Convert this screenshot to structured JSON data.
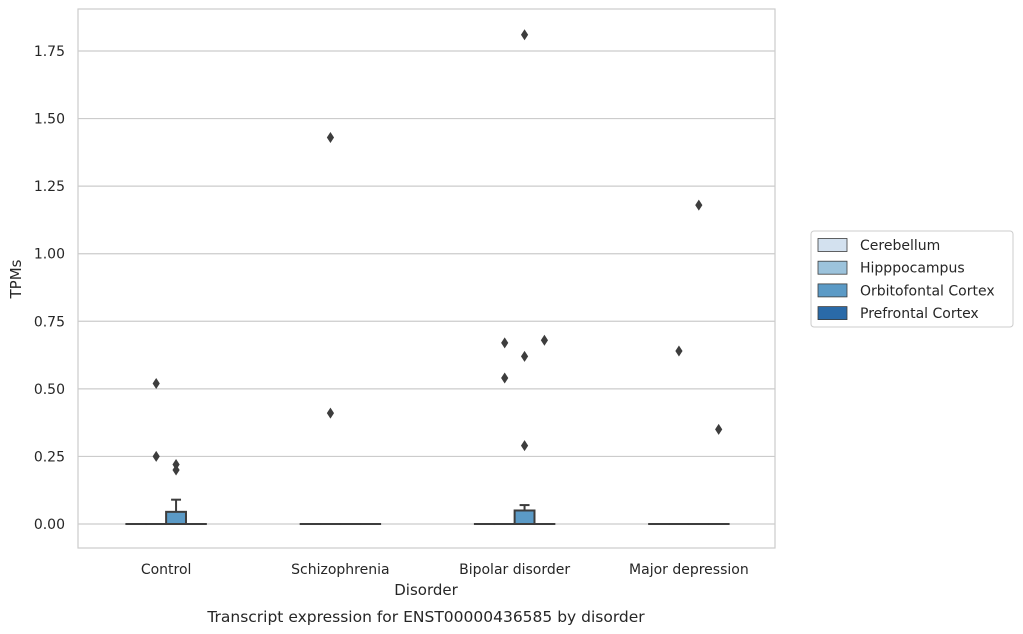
{
  "chart_data": {
    "type": "box",
    "title": "",
    "caption": "Transcript expression for ENST00000436585 by disorder",
    "xlabel": "Disorder",
    "ylabel": "TPMs",
    "ylim": [
      -0.09,
      1.9
    ],
    "yticks": [
      0.0,
      0.25,
      0.5,
      0.75,
      1.0,
      1.25,
      1.5,
      1.75
    ],
    "ytick_labels": [
      "0.00",
      "0.25",
      "0.50",
      "0.75",
      "1.00",
      "1.25",
      "1.50",
      "1.75"
    ],
    "grid": true,
    "legend_position": "right",
    "categories": [
      "Control",
      "Schizophrenia",
      "Bipolar disorder",
      "Major depression"
    ],
    "series": [
      {
        "name": "Cerebellum",
        "color": "#d3e1ef",
        "boxes": [
          {
            "q1": 0,
            "median": 0,
            "q3": 0,
            "whisker_low": 0,
            "whisker_high": 0,
            "outliers": []
          },
          {
            "q1": 0,
            "median": 0,
            "q3": 0,
            "whisker_low": 0,
            "whisker_high": 0,
            "outliers": []
          },
          {
            "q1": 0,
            "median": 0,
            "q3": 0,
            "whisker_low": 0,
            "whisker_high": 0,
            "outliers": []
          },
          {
            "q1": 0,
            "median": 0,
            "q3": 0,
            "whisker_low": 0,
            "whisker_high": 0,
            "outliers": []
          }
        ]
      },
      {
        "name": "Hipppocampus",
        "color": "#9cc3dc",
        "boxes": [
          {
            "q1": 0,
            "median": 0,
            "q3": 0,
            "whisker_low": 0,
            "whisker_high": 0,
            "outliers": [
              0.52,
              0.25
            ]
          },
          {
            "q1": 0,
            "median": 0,
            "q3": 0,
            "whisker_low": 0,
            "whisker_high": 0,
            "outliers": [
              1.43,
              0.41
            ]
          },
          {
            "q1": 0,
            "median": 0,
            "q3": 0,
            "whisker_low": 0,
            "whisker_high": 0,
            "outliers": [
              0.67,
              0.54
            ]
          },
          {
            "q1": 0,
            "median": 0,
            "q3": 0,
            "whisker_low": 0,
            "whisker_high": 0,
            "outliers": [
              0.64
            ]
          }
        ]
      },
      {
        "name": "Orbitofontal Cortex",
        "color": "#5b9ac6",
        "boxes": [
          {
            "q1": 0,
            "median": 0,
            "q3": 0.045,
            "whisker_low": 0,
            "whisker_high": 0.09,
            "outliers": [
              0.22,
              0.2
            ]
          },
          {
            "q1": 0,
            "median": 0,
            "q3": 0,
            "whisker_low": 0,
            "whisker_high": 0,
            "outliers": []
          },
          {
            "q1": 0,
            "median": 0,
            "q3": 0.05,
            "whisker_low": 0,
            "whisker_high": 0.07,
            "outliers": [
              1.81,
              0.62,
              0.29
            ]
          },
          {
            "q1": 0,
            "median": 0,
            "q3": 0,
            "whisker_low": 0,
            "whisker_high": 0,
            "outliers": [
              1.18
            ]
          }
        ]
      },
      {
        "name": "Prefrontal Cortex",
        "color": "#2a6aa8",
        "boxes": [
          {
            "q1": 0,
            "median": 0,
            "q3": 0,
            "whisker_low": 0,
            "whisker_high": 0,
            "outliers": []
          },
          {
            "q1": 0,
            "median": 0,
            "q3": 0,
            "whisker_low": 0,
            "whisker_high": 0,
            "outliers": []
          },
          {
            "q1": 0,
            "median": 0,
            "q3": 0,
            "whisker_low": 0,
            "whisker_high": 0,
            "outliers": [
              0.68
            ]
          },
          {
            "q1": 0,
            "median": 0,
            "q3": 0,
            "whisker_low": 0,
            "whisker_high": 0,
            "outliers": [
              0.35
            ]
          }
        ]
      }
    ]
  }
}
